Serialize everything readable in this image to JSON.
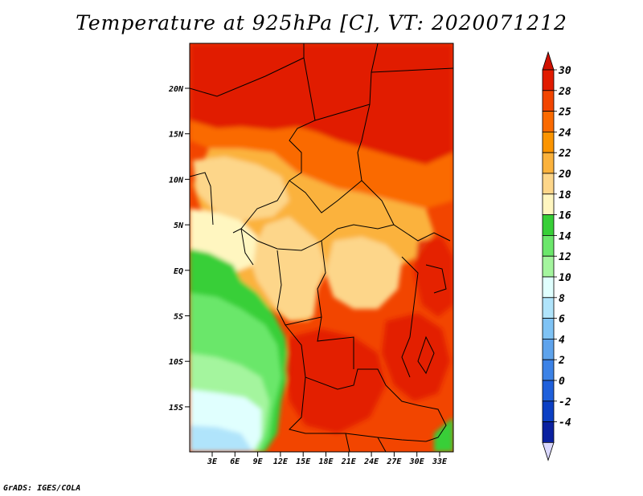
{
  "title": "Temperature at 925hPa [C], VT: 2020071212",
  "footer": "GrADS: IGES/COLA",
  "axes": {
    "lat_labels": [
      "20N",
      "15N",
      "10N",
      "5N",
      "EQ",
      "5S",
      "10S",
      "15S"
    ],
    "lon_labels": [
      "3E",
      "6E",
      "9E",
      "12E",
      "15E",
      "18E",
      "21E",
      "24E",
      "27E",
      "30E",
      "33E"
    ]
  },
  "colorbar": {
    "labels": [
      "30",
      "28",
      "25",
      "24",
      "22",
      "20",
      "18",
      "16",
      "14",
      "12",
      "10",
      "8",
      "6",
      "4",
      "2",
      "0",
      "-2",
      "-4"
    ],
    "colors": [
      "#e11b00",
      "#f24500",
      "#fa6a00",
      "#fb9400",
      "#fbb23c",
      "#fdd68a",
      "#fff6c0",
      "#37cf37",
      "#6be76b",
      "#a4f59e",
      "#e0fffe",
      "#b0e4fb",
      "#7fc3f5",
      "#5ea3ec",
      "#3c82e6",
      "#1e5fdb",
      "#0b3fc4",
      "#0a20a0",
      "#05006a"
    ],
    "top_arrow_color": "#d01000",
    "bottom_arrow_color": "#dad8ff"
  }
}
